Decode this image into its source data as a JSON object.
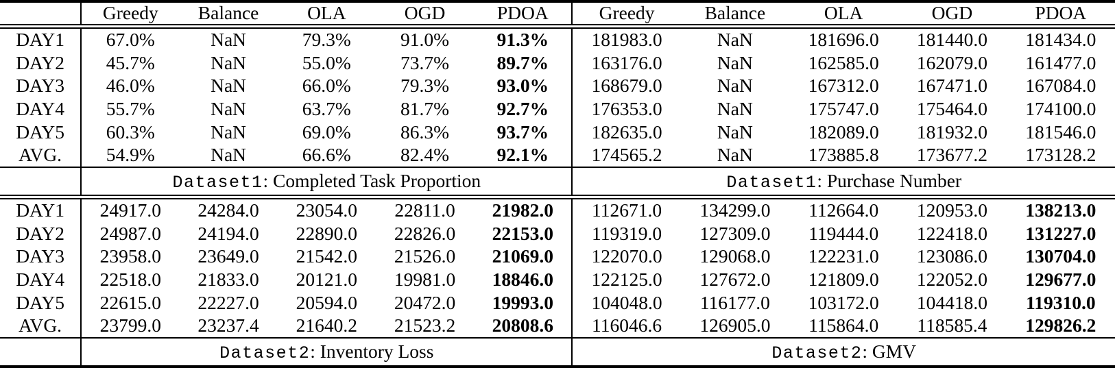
{
  "table": {
    "columns": [
      "Greedy",
      "Balance",
      "OLA",
      "OGD",
      "PDOA"
    ],
    "row_labels": [
      "DAY1",
      "DAY2",
      "DAY3",
      "DAY4",
      "DAY5",
      "AVG."
    ],
    "colors": {
      "text": "#000000",
      "background": "#ffffff",
      "rule": "#000000"
    },
    "sections": [
      {
        "caption_mono": "Dataset1",
        "caption_rest": ": Completed Task Proportion",
        "bold_last_col": true,
        "rows": [
          [
            "67.0%",
            "NaN",
            "79.3%",
            "91.0%",
            "91.3%"
          ],
          [
            "45.7%",
            "NaN",
            "55.0%",
            "73.7%",
            "89.7%"
          ],
          [
            "46.0%",
            "NaN",
            "66.0%",
            "79.3%",
            "93.0%"
          ],
          [
            "55.7%",
            "NaN",
            "63.7%",
            "81.7%",
            "92.7%"
          ],
          [
            "60.3%",
            "NaN",
            "69.0%",
            "86.3%",
            "93.7%"
          ],
          [
            "54.9%",
            "NaN",
            "66.6%",
            "82.4%",
            "92.1%"
          ]
        ]
      },
      {
        "caption_mono": "Dataset1",
        "caption_rest": ": Purchase Number",
        "bold_last_col": false,
        "rows": [
          [
            "181983.0",
            "NaN",
            "181696.0",
            "181440.0",
            "181434.0"
          ],
          [
            "163176.0",
            "NaN",
            "162585.0",
            "162079.0",
            "161477.0"
          ],
          [
            "168679.0",
            "NaN",
            "167312.0",
            "167471.0",
            "167084.0"
          ],
          [
            "176353.0",
            "NaN",
            "175747.0",
            "175464.0",
            "174100.0"
          ],
          [
            "182635.0",
            "NaN",
            "182089.0",
            "181932.0",
            "181546.0"
          ],
          [
            "174565.2",
            "NaN",
            "173885.8",
            "173677.2",
            "173128.2"
          ]
        ]
      },
      {
        "caption_mono": "Dataset2",
        "caption_rest": ": Inventory Loss",
        "bold_last_col": true,
        "rows": [
          [
            "24917.0",
            "24284.0",
            "23054.0",
            "22811.0",
            "21982.0"
          ],
          [
            "24987.0",
            "24194.0",
            "22890.0",
            "22826.0",
            "22153.0"
          ],
          [
            "23958.0",
            "23649.0",
            "21542.0",
            "21526.0",
            "21069.0"
          ],
          [
            "22518.0",
            "21833.0",
            "20121.0",
            "19981.0",
            "18846.0"
          ],
          [
            "22615.0",
            "22227.0",
            "20594.0",
            "20472.0",
            "19993.0"
          ],
          [
            "23799.0",
            "23237.4",
            "21640.2",
            "21523.2",
            "20808.6"
          ]
        ]
      },
      {
        "caption_mono": "Dataset2",
        "caption_rest": ": GMV",
        "bold_last_col": true,
        "rows": [
          [
            "112671.0",
            "134299.0",
            "112664.0",
            "120953.0",
            "138213.0"
          ],
          [
            "119319.0",
            "127309.0",
            "119444.0",
            "122418.0",
            "131227.0"
          ],
          [
            "122070.0",
            "129068.0",
            "122231.0",
            "123086.0",
            "130704.0"
          ],
          [
            "122125.0",
            "127672.0",
            "121809.0",
            "122052.0",
            "129677.0"
          ],
          [
            "104048.0",
            "116177.0",
            "103172.0",
            "104418.0",
            "119310.0"
          ],
          [
            "116046.6",
            "126905.0",
            "115864.0",
            "118585.4",
            "129826.2"
          ]
        ]
      }
    ]
  }
}
